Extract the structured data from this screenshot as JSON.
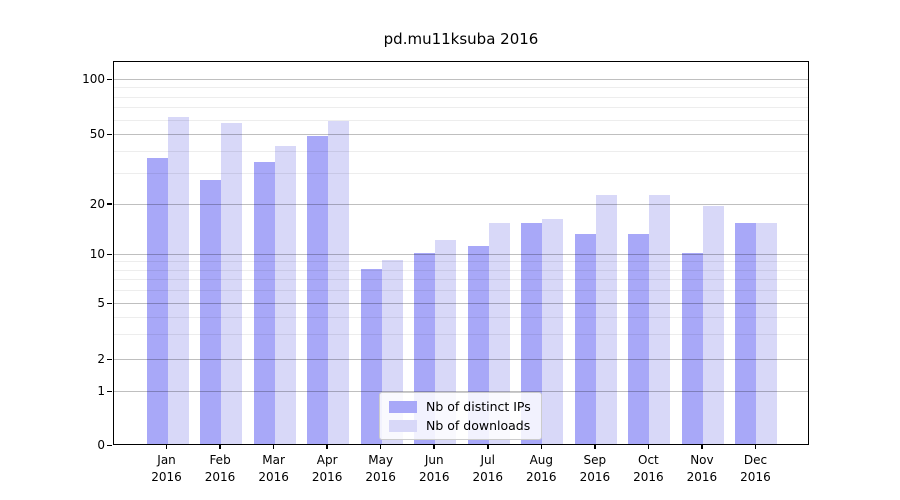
{
  "title": "pd.mu11ksuba 2016",
  "legend": {
    "items": [
      {
        "label": "Nb of distinct IPs",
        "color": "#a8a8f8"
      },
      {
        "label": "Nb of downloads",
        "color": "#d8d8f8"
      }
    ]
  },
  "chart_data": {
    "type": "bar",
    "title": "pd.mu11ksuba 2016",
    "categories": [
      "Jan 2016",
      "Feb 2016",
      "Mar 2016",
      "Apr 2016",
      "May 2016",
      "Jun 2016",
      "Jul 2016",
      "Aug 2016",
      "Sep 2016",
      "Oct 2016",
      "Nov 2016",
      "Dec 2016"
    ],
    "series": [
      {
        "name": "Nb of distinct IPs",
        "color": "#a8a8f8",
        "values": [
          36,
          27,
          34,
          48,
          8,
          10,
          11,
          15,
          13,
          13,
          10,
          15
        ]
      },
      {
        "name": "Nb of downloads",
        "color": "#d8d8f8",
        "values": [
          61,
          57,
          42,
          58,
          9,
          12,
          15,
          16,
          22,
          22,
          19,
          15
        ]
      }
    ],
    "xlabel": "",
    "ylabel": "",
    "yscale": "symlog",
    "yticks": [
      0,
      1,
      2,
      5,
      10,
      20,
      50,
      100
    ],
    "yminorticks": [
      3,
      4,
      6,
      7,
      8,
      9,
      30,
      40,
      60,
      70,
      80,
      90
    ],
    "ylim": [
      0,
      126
    ],
    "grid": true,
    "legend_position": "lower center"
  }
}
